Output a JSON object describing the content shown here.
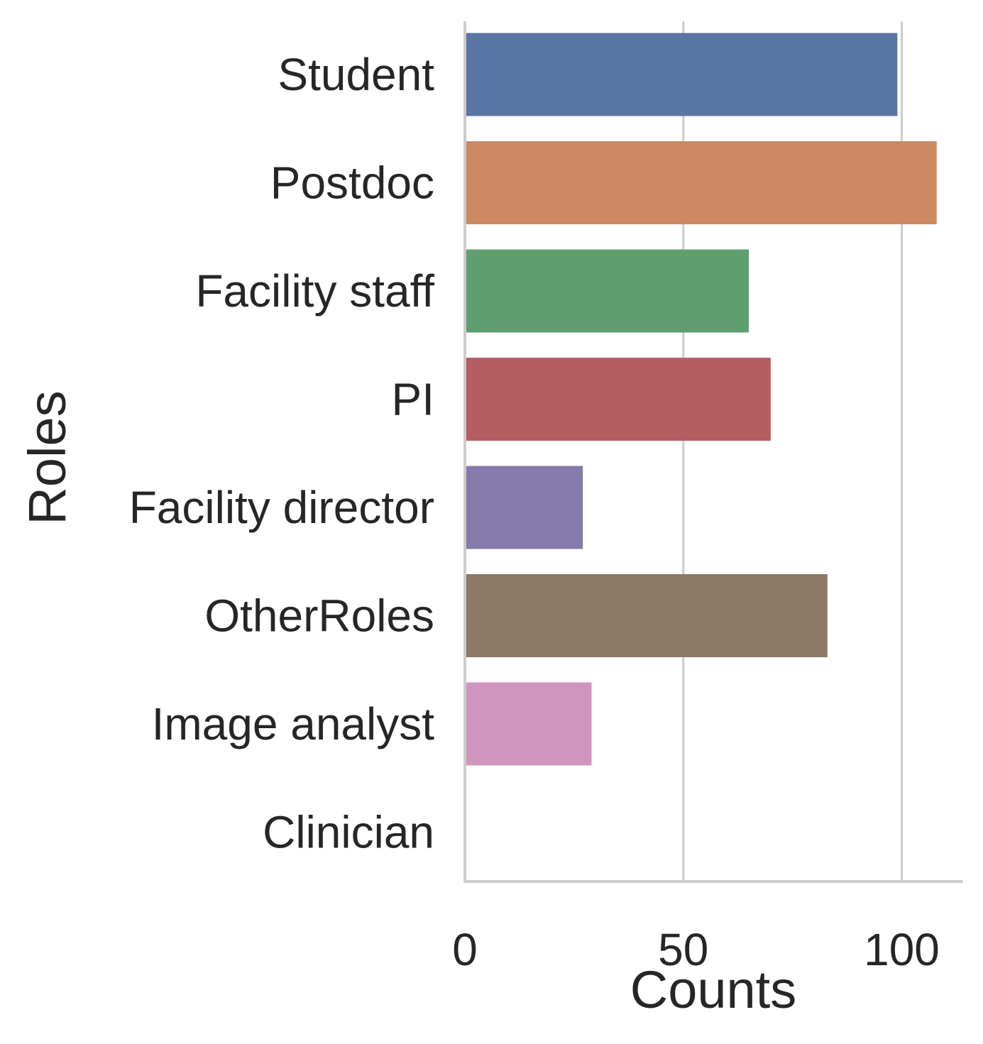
{
  "chart_data": {
    "type": "bar",
    "orientation": "horizontal",
    "categories": [
      "Student",
      "Postdoc",
      "Facility staff",
      "PI",
      "Facility director",
      "OtherRoles",
      "Image analyst",
      "Clinician"
    ],
    "values": [
      99,
      108,
      65,
      70,
      27,
      83,
      29,
      0
    ],
    "colors": [
      "#5975a4",
      "#cc8963",
      "#5f9e6e",
      "#b55d60",
      "#857aab",
      "#8d7866",
      "#d095bf",
      "#c1b37f"
    ],
    "xlabel": "Counts",
    "ylabel": "Roles",
    "xticks": [
      "0",
      "50",
      "100"
    ],
    "xlim": [
      0,
      114
    ],
    "grid": "x-major",
    "spines": "left-bottom"
  }
}
